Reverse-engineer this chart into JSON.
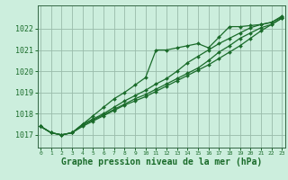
{
  "title": "Graphe pression niveau de la mer (hPa)",
  "background_color": "#cceedd",
  "grid_color": "#99bbaa",
  "line_color": "#1a6b2a",
  "xlim": [
    -0.3,
    23.3
  ],
  "ylim": [
    1016.4,
    1023.1
  ],
  "yticks": [
    1017,
    1018,
    1019,
    1020,
    1021,
    1022
  ],
  "xticks": [
    0,
    1,
    2,
    3,
    4,
    5,
    6,
    7,
    8,
    9,
    10,
    11,
    12,
    13,
    14,
    15,
    16,
    17,
    18,
    19,
    20,
    21,
    22,
    23
  ],
  "series": [
    [
      1017.4,
      1017.1,
      1017.0,
      1017.1,
      1017.5,
      1017.9,
      1018.3,
      1018.7,
      1019.0,
      1019.35,
      1019.7,
      1021.0,
      1021.0,
      1021.1,
      1021.2,
      1021.3,
      1021.1,
      1021.6,
      1022.1,
      1022.1,
      1022.15,
      1022.2,
      1022.3,
      1022.6
    ],
    [
      1017.4,
      1017.1,
      1017.0,
      1017.1,
      1017.5,
      1017.75,
      1018.0,
      1018.3,
      1018.6,
      1018.85,
      1019.1,
      1019.4,
      1019.65,
      1020.0,
      1020.4,
      1020.7,
      1021.0,
      1021.3,
      1021.55,
      1021.8,
      1022.05,
      1022.2,
      1022.3,
      1022.55
    ],
    [
      1017.4,
      1017.1,
      1017.0,
      1017.1,
      1017.45,
      1017.7,
      1017.95,
      1018.2,
      1018.45,
      1018.7,
      1018.9,
      1019.15,
      1019.4,
      1019.65,
      1019.9,
      1020.15,
      1020.5,
      1020.9,
      1021.2,
      1021.55,
      1021.8,
      1022.05,
      1022.2,
      1022.5
    ],
    [
      1017.4,
      1017.1,
      1017.0,
      1017.1,
      1017.4,
      1017.65,
      1017.9,
      1018.15,
      1018.4,
      1018.6,
      1018.8,
      1019.05,
      1019.3,
      1019.55,
      1019.8,
      1020.05,
      1020.3,
      1020.6,
      1020.9,
      1021.2,
      1021.55,
      1021.9,
      1022.2,
      1022.5
    ]
  ],
  "marker": "D",
  "markersize": 2.0,
  "linewidth": 0.9,
  "xlabel_fontsize": 7,
  "ytick_fontsize": 6,
  "xtick_fontsize": 4.5,
  "spine_color": "#336644",
  "label_color": "#1a6b2a"
}
